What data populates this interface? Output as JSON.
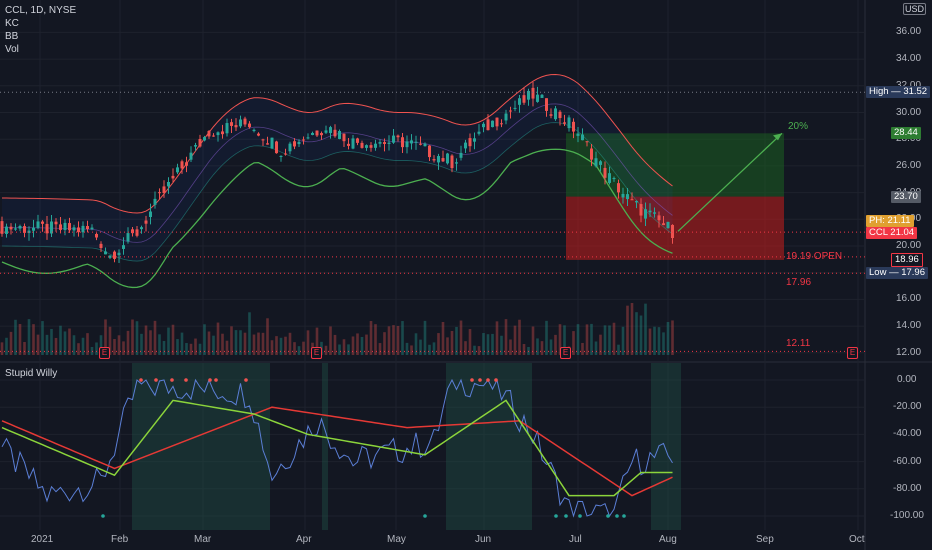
{
  "legend": {
    "symbol_line": "CCL, 1D, NYSE",
    "indicators": [
      "KC",
      "BB",
      "Vol"
    ]
  },
  "currency_badge": "USD",
  "indicator_title": "Stupid Willy",
  "price_axis": [
    "36.00",
    "34.00",
    "32.00",
    "30.00",
    "28.00",
    "26.00",
    "24.00",
    "22.00",
    "20.00",
    "18.00",
    "16.00",
    "14.00",
    "12.00"
  ],
  "osc_axis": [
    "0.00",
    "-20.00",
    "-40.00",
    "-60.00",
    "-80.00",
    "-100.00"
  ],
  "time_axis": [
    "2021",
    "Feb",
    "Mar",
    "Apr",
    "May",
    "Jun",
    "Jul",
    "Aug",
    "Sep",
    "Oct"
  ],
  "price_tags": {
    "high": {
      "label": "High",
      "value": "31.52"
    },
    "target": {
      "value": "28.44"
    },
    "stop": {
      "value": "23.70"
    },
    "prev": {
      "label": "PH:",
      "value": "21.11"
    },
    "last": {
      "label": "CCL",
      "value": "21.04"
    },
    "open_level": {
      "value": "18.96"
    },
    "low": {
      "label": "Low",
      "value": "17.96"
    }
  },
  "annotations": {
    "pct": "20%",
    "open_line": "19.19 OPEN",
    "level_1": "17.96",
    "level_2": "12.11"
  },
  "earnings_marker": "E",
  "colors": {
    "background": "#131722",
    "up": "#26a69a",
    "down": "#ef5350",
    "keltner": "#ef5350",
    "bollinger_lower": "#4caf50",
    "osc_fast": "#5b7fd6",
    "osc_signal": "#8bd43b",
    "osc_slow": "#e53935",
    "target_zone": "#1b5e20",
    "stop_zone": "#b71c1c"
  }
}
